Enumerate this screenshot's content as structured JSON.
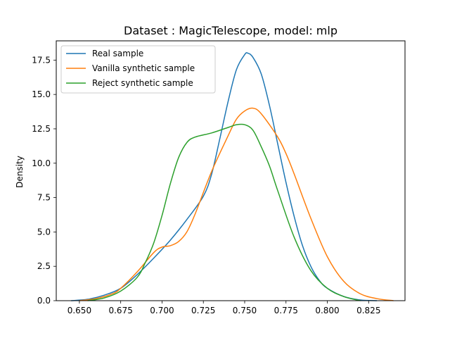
{
  "chart_data": {
    "type": "line",
    "title": "Dataset : MagicTelescope, model: mlp",
    "xlabel": "",
    "ylabel": "Density",
    "xlim": [
      0.636,
      0.847
    ],
    "ylim": [
      0,
      18.9
    ],
    "x_ticks": [
      0.65,
      0.675,
      0.7,
      0.725,
      0.75,
      0.775,
      0.8,
      0.825
    ],
    "x_tick_labels": [
      "0.650",
      "0.675",
      "0.700",
      "0.725",
      "0.750",
      "0.775",
      "0.800",
      "0.825"
    ],
    "y_ticks": [
      0,
      2.5,
      5,
      7.5,
      10,
      12.5,
      15,
      17.5
    ],
    "y_tick_labels": [
      "0.0",
      "2.5",
      "5.0",
      "7.5",
      "10.0",
      "12.5",
      "15.0",
      "17.5"
    ],
    "grid": false,
    "legend_position": "top-left",
    "series": [
      {
        "name": "Real sample",
        "color": "#1f77b4",
        "x": [
          0.645,
          0.655,
          0.665,
          0.675,
          0.685,
          0.695,
          0.705,
          0.715,
          0.725,
          0.73,
          0.735,
          0.74,
          0.745,
          0.75,
          0.752,
          0.755,
          0.76,
          0.765,
          0.77,
          0.775,
          0.78,
          0.785,
          0.79,
          0.795,
          0.8,
          0.81,
          0.82,
          0.83
        ],
        "y": [
          0.0,
          0.1,
          0.4,
          0.9,
          1.9,
          3.1,
          4.4,
          5.9,
          7.6,
          9.2,
          11.8,
          14.5,
          16.8,
          17.9,
          18.0,
          17.7,
          16.5,
          14.2,
          11.4,
          8.6,
          6.1,
          4.0,
          2.5,
          1.5,
          0.9,
          0.3,
          0.05,
          0.0
        ]
      },
      {
        "name": "Vanilla synthetic sample",
        "color": "#ff7f0e",
        "x": [
          0.65,
          0.66,
          0.67,
          0.675,
          0.685,
          0.695,
          0.7,
          0.705,
          0.71,
          0.715,
          0.72,
          0.73,
          0.74,
          0.745,
          0.75,
          0.755,
          0.76,
          0.77,
          0.775,
          0.78,
          0.79,
          0.8,
          0.81,
          0.82,
          0.83,
          0.84
        ],
        "y": [
          0.0,
          0.15,
          0.5,
          0.9,
          2.1,
          3.5,
          3.9,
          4.0,
          4.3,
          5.0,
          6.3,
          9.4,
          12.0,
          13.2,
          13.8,
          14.0,
          13.6,
          11.9,
          10.7,
          9.2,
          6.0,
          3.2,
          1.4,
          0.5,
          0.15,
          0.0
        ]
      },
      {
        "name": "Reject synthetic sample",
        "color": "#2ca02c",
        "x": [
          0.655,
          0.665,
          0.675,
          0.685,
          0.69,
          0.695,
          0.7,
          0.705,
          0.71,
          0.715,
          0.72,
          0.73,
          0.74,
          0.745,
          0.75,
          0.755,
          0.76,
          0.765,
          0.77,
          0.78,
          0.79,
          0.8,
          0.81,
          0.82
        ],
        "y": [
          0.0,
          0.2,
          0.7,
          1.7,
          2.8,
          4.2,
          6.2,
          8.5,
          10.4,
          11.5,
          11.9,
          12.2,
          12.6,
          12.8,
          12.8,
          12.4,
          11.2,
          9.8,
          8.0,
          4.6,
          2.2,
          0.9,
          0.3,
          0.0
        ]
      }
    ]
  }
}
